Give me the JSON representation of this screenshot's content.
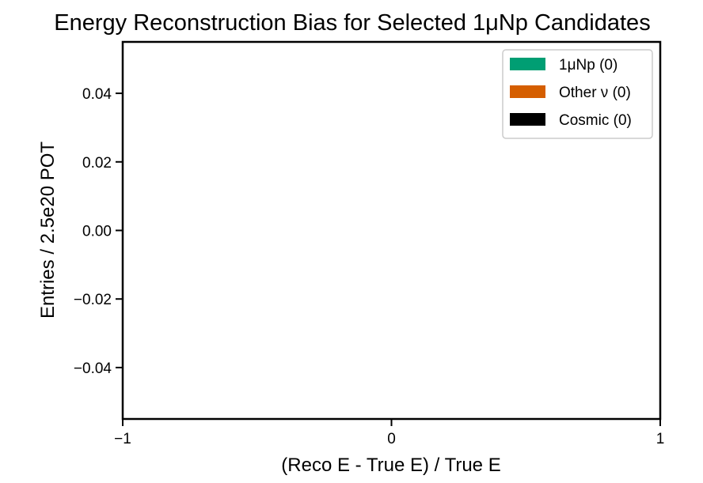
{
  "chart_data": {
    "type": "bar",
    "title": "Energy Reconstruction Bias for Selected 1μNp Candidates",
    "xlabel": "(Reco E - True E) / True E",
    "ylabel": "Entries / 2.5e20 POT",
    "xlim": [
      -1,
      1
    ],
    "ylim": [
      -0.055,
      0.055
    ],
    "xticks": [
      {
        "value": -1,
        "label": "−1"
      },
      {
        "value": 0,
        "label": "0"
      },
      {
        "value": 1,
        "label": "1"
      }
    ],
    "yticks": [
      {
        "value": 0.04,
        "label": "0.04"
      },
      {
        "value": 0.02,
        "label": "0.02"
      },
      {
        "value": 0.0,
        "label": "0.00"
      },
      {
        "value": -0.02,
        "label": "−0.02"
      },
      {
        "value": -0.04,
        "label": "−0.04"
      }
    ],
    "grid": false,
    "legend_position": "top-right",
    "series": [
      {
        "name": "1μNp (0)",
        "color": "#009E73",
        "values": []
      },
      {
        "name": "Other ν (0)",
        "color": "#D55E00",
        "values": []
      },
      {
        "name": "Cosmic (0)",
        "color": "#000000",
        "values": []
      }
    ]
  }
}
